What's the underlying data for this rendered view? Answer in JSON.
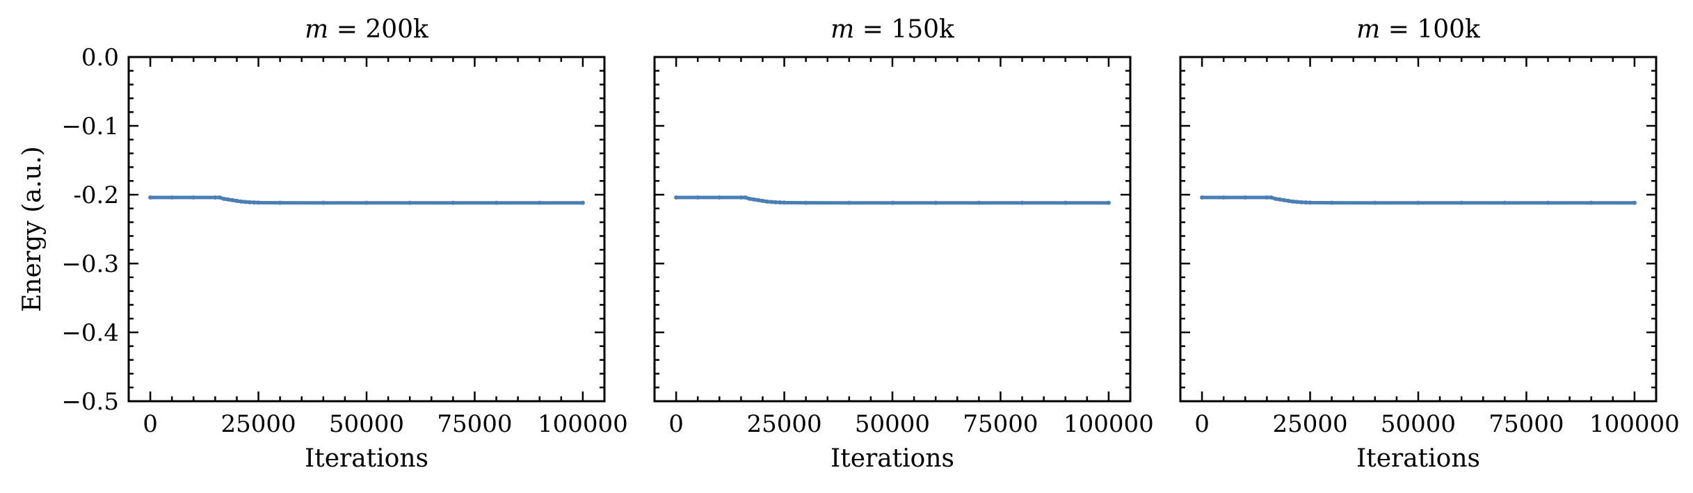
{
  "chart_data": [
    {
      "type": "line",
      "title": "m = 200k",
      "title_math": {
        "var": "m",
        "rest": " = 200k"
      },
      "xlabel": "Iterations",
      "ylabel": "Energy (a.u.)",
      "xlim": [
        -5000,
        105000
      ],
      "ylim": [
        -0.5,
        0.0
      ],
      "xticks": [
        0,
        25000,
        50000,
        75000,
        100000
      ],
      "xtick_labels": [
        "0",
        "25000",
        "50000",
        "75000",
        "100000"
      ],
      "yticks": [
        0.0,
        -0.1,
        -0.2,
        -0.3,
        -0.4,
        -0.5
      ],
      "ytick_labels": [
        "0.0",
        "−0.1",
        "-0.2",
        "−0.3",
        "−0.4",
        "−0.5"
      ],
      "show_yticklabels": true,
      "grid": false,
      "series": [
        {
          "color": "#4a7fb5",
          "x": [
            0,
            5000,
            10000,
            15000,
            16000,
            17000,
            18000,
            19000,
            20000,
            21000,
            22000,
            23000,
            24000,
            25000,
            30000,
            40000,
            50000,
            60000,
            70000,
            80000,
            90000,
            100000
          ],
          "y": [
            -0.204,
            -0.204,
            -0.204,
            -0.204,
            -0.204,
            -0.206,
            -0.207,
            -0.208,
            -0.209,
            -0.21,
            -0.2105,
            -0.211,
            -0.2112,
            -0.2115,
            -0.2117,
            -0.2118,
            -0.2118,
            -0.2118,
            -0.2118,
            -0.2118,
            -0.2118,
            -0.2118
          ]
        }
      ]
    },
    {
      "type": "line",
      "title": "m = 150k",
      "title_math": {
        "var": "m",
        "rest": " = 150k"
      },
      "xlabel": "Iterations",
      "ylabel": "",
      "xlim": [
        -5000,
        105000
      ],
      "ylim": [
        -0.5,
        0.0
      ],
      "xticks": [
        0,
        25000,
        50000,
        75000,
        100000
      ],
      "xtick_labels": [
        "0",
        "25000",
        "50000",
        "75000",
        "100000"
      ],
      "yticks": [
        0.0,
        -0.1,
        -0.2,
        -0.3,
        -0.4,
        -0.5
      ],
      "ytick_labels": [],
      "show_yticklabels": false,
      "grid": false,
      "series": [
        {
          "color": "#4a7fb5",
          "x": [
            0,
            5000,
            10000,
            15000,
            16000,
            17000,
            18000,
            19000,
            20000,
            21000,
            22000,
            23000,
            24000,
            25000,
            30000,
            40000,
            50000,
            60000,
            70000,
            80000,
            90000,
            100000
          ],
          "y": [
            -0.204,
            -0.204,
            -0.204,
            -0.204,
            -0.204,
            -0.206,
            -0.207,
            -0.208,
            -0.209,
            -0.21,
            -0.2105,
            -0.211,
            -0.2112,
            -0.2115,
            -0.2117,
            -0.2118,
            -0.2118,
            -0.2118,
            -0.2118,
            -0.2118,
            -0.2118,
            -0.2118
          ]
        }
      ]
    },
    {
      "type": "line",
      "title": "m = 100k",
      "title_math": {
        "var": "m",
        "rest": " = 100k"
      },
      "xlabel": "Iterations",
      "ylabel": "",
      "xlim": [
        -5000,
        105000
      ],
      "ylim": [
        -0.5,
        0.0
      ],
      "xticks": [
        0,
        25000,
        50000,
        75000,
        100000
      ],
      "xtick_labels": [
        "0",
        "25000",
        "50000",
        "75000",
        "100000"
      ],
      "yticks": [
        0.0,
        -0.1,
        -0.2,
        -0.3,
        -0.4,
        -0.5
      ],
      "ytick_labels": [],
      "show_yticklabels": false,
      "grid": false,
      "series": [
        {
          "color": "#4a7fb5",
          "x": [
            0,
            5000,
            10000,
            15000,
            16000,
            17000,
            18000,
            19000,
            20000,
            21000,
            22000,
            23000,
            24000,
            25000,
            30000,
            40000,
            50000,
            60000,
            70000,
            80000,
            90000,
            100000
          ],
          "y": [
            -0.204,
            -0.204,
            -0.204,
            -0.204,
            -0.204,
            -0.206,
            -0.207,
            -0.208,
            -0.209,
            -0.21,
            -0.2105,
            -0.211,
            -0.2112,
            -0.2115,
            -0.2117,
            -0.2118,
            -0.2118,
            -0.2118,
            -0.2118,
            -0.2118,
            -0.2118,
            -0.2118
          ]
        }
      ]
    }
  ]
}
